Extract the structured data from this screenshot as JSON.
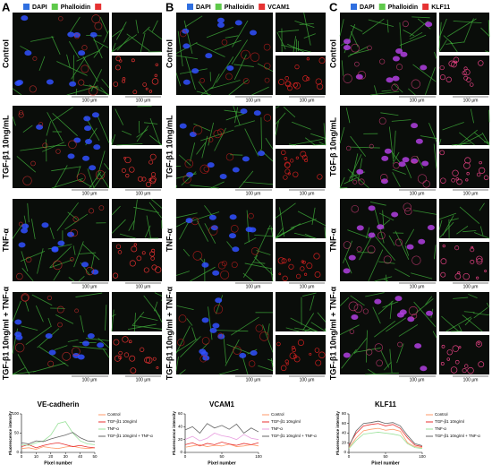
{
  "panels": [
    {
      "letter": "A",
      "legend": [
        "DAPI",
        "Phalloidin"
      ],
      "rows": [
        "Control",
        "TGF-β1 10ng/mL",
        "TNF-α",
        "TGF-β1 10ng/ml + TNF-α"
      ],
      "scale_bar": "100 μm",
      "chart": {
        "type": "line",
        "title": "VE-cadherin",
        "x_label": "Pixel number",
        "y_label": "Fluorescence intensity",
        "x": [
          0,
          5,
          10,
          15,
          20,
          25,
          30,
          35,
          40,
          45,
          50
        ],
        "xlim": [
          0,
          50
        ],
        "xticks": [
          0,
          10,
          20,
          30,
          40,
          50
        ],
        "ylim": [
          0,
          100
        ],
        "yticks": [
          0,
          50,
          100
        ],
        "series": [
          {
            "name": "Control",
            "color": "#ff9a6a",
            "values": [
              10,
              12,
              8,
              15,
              12,
              10,
              14,
              16,
              12,
              10,
              12
            ]
          },
          {
            "name": "TGF-β1 10ng/ml",
            "color": "#e83030",
            "values": [
              15,
              20,
              12,
              18,
              22,
              25,
              20,
              15,
              18,
              14,
              12
            ]
          },
          {
            "name": "TNF-α",
            "color": "#9be29b",
            "values": [
              20,
              18,
              25,
              30,
              45,
              75,
              80,
              50,
              30,
              22,
              20
            ]
          },
          {
            "name": "TGF-β1 10ng/ml + TNF-α",
            "color": "#666666",
            "values": [
              25,
              22,
              30,
              28,
              35,
              40,
              45,
              52,
              38,
              30,
              28
            ]
          }
        ]
      }
    },
    {
      "letter": "B",
      "legend": [
        "DAPI",
        "Phalloidin",
        "VCAM1"
      ],
      "rows": [
        "Control",
        "TGF-β1 10ng/mL",
        "TNF-α",
        "TGF-β1 10ng/ml + TNF-α"
      ],
      "scale_bar": "100 μm",
      "chart": {
        "type": "line",
        "title": "VCAM1",
        "x_label": "Pixel number",
        "y_label": "Fluorescence intensity",
        "x": [
          0,
          10,
          20,
          30,
          40,
          50,
          60,
          70,
          80,
          90,
          100
        ],
        "xlim": [
          0,
          100
        ],
        "xticks": [
          0,
          50,
          100
        ],
        "ylim": [
          0,
          60
        ],
        "yticks": [
          0,
          20,
          40,
          60
        ],
        "series": [
          {
            "name": "Control",
            "color": "#ff9a6a",
            "values": [
              8,
              10,
              12,
              9,
              11,
              10,
              13,
              9,
              10,
              12,
              10
            ]
          },
          {
            "name": "TGF-β1 10ng/ml",
            "color": "#e83030",
            "values": [
              12,
              15,
              10,
              14,
              12,
              16,
              13,
              11,
              14,
              12,
              15
            ]
          },
          {
            "name": "TNF-α",
            "color": "#e9a0e0",
            "values": [
              20,
              25,
              18,
              22,
              30,
              26,
              24,
              20,
              28,
              22,
              20
            ]
          },
          {
            "name": "TGF-β1 10ng/ml + TNF-α",
            "color": "#666666",
            "values": [
              35,
              40,
              30,
              45,
              38,
              42,
              36,
              44,
              30,
              38,
              32
            ]
          }
        ]
      }
    },
    {
      "letter": "C",
      "legend": [
        "DAPI",
        "Phalloidin",
        "KLF11"
      ],
      "rows": [
        "Control",
        "TGF-β 10ng/mL",
        "TNF-α",
        "TGF-β1 10ng/ml + TNF-α"
      ],
      "scale_bar": "100 μm",
      "chart": {
        "type": "line",
        "title": "KLF11",
        "x_label": "Pixel number",
        "y_label": "Fluorescence intensity",
        "x": [
          0,
          10,
          20,
          30,
          40,
          50,
          60,
          70,
          80,
          90,
          100
        ],
        "xlim": [
          0,
          100
        ],
        "xticks": [
          0,
          50,
          100
        ],
        "ylim": [
          0,
          80
        ],
        "yticks": [
          0,
          20,
          40,
          60,
          80
        ],
        "series": [
          {
            "name": "Control",
            "color": "#ff9a6a",
            "values": [
              10,
              30,
              45,
              48,
              50,
              46,
              48,
              44,
              20,
              12,
              10
            ]
          },
          {
            "name": "TGF-β1 10ng/ml",
            "color": "#e83030",
            "values": [
              15,
              40,
              55,
              58,
              60,
              55,
              58,
              50,
              30,
              15,
              12
            ]
          },
          {
            "name": "TNF-α",
            "color": "#9be29b",
            "values": [
              8,
              25,
              38,
              40,
              42,
              40,
              38,
              35,
              18,
              10,
              8
            ]
          },
          {
            "name": "TGF-β1 10ng/ml + TNF-α",
            "color": "#666666",
            "values": [
              12,
              45,
              60,
              62,
              65,
              60,
              62,
              55,
              35,
              18,
              14
            ]
          }
        ]
      }
    }
  ]
}
